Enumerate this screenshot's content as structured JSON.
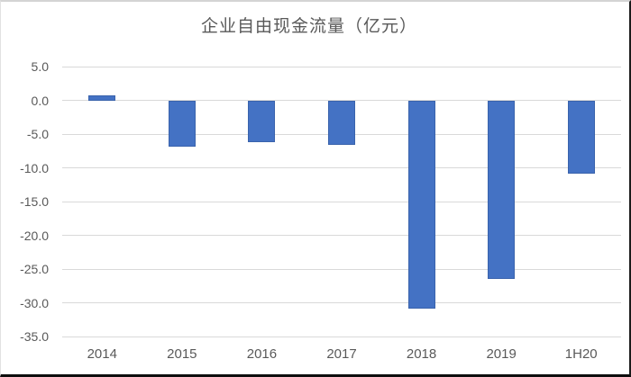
{
  "chart_data": {
    "type": "bar",
    "title": "企业自由现金流量（亿元）",
    "categories": [
      "2014",
      "2015",
      "2016",
      "2017",
      "2018",
      "2019",
      "1H20"
    ],
    "values": [
      0.8,
      -6.9,
      -6.2,
      -6.6,
      -30.9,
      -26.4,
      -10.9
    ],
    "xlabel": "",
    "ylabel": "",
    "ylim": [
      -35,
      5
    ],
    "ytick_step": 5,
    "ytick_labels": [
      "5.0",
      "0.0",
      "-5.0",
      "-10.0",
      "-15.0",
      "-20.0",
      "-25.0",
      "-30.0",
      "-35.0"
    ],
    "grid": true,
    "legend": false,
    "bar_color": "#4472c4",
    "bar_edge_color": "#3a63ac",
    "grid_color": "#d9d9d9",
    "text_color": "#595959",
    "background": "#ffffff"
  }
}
